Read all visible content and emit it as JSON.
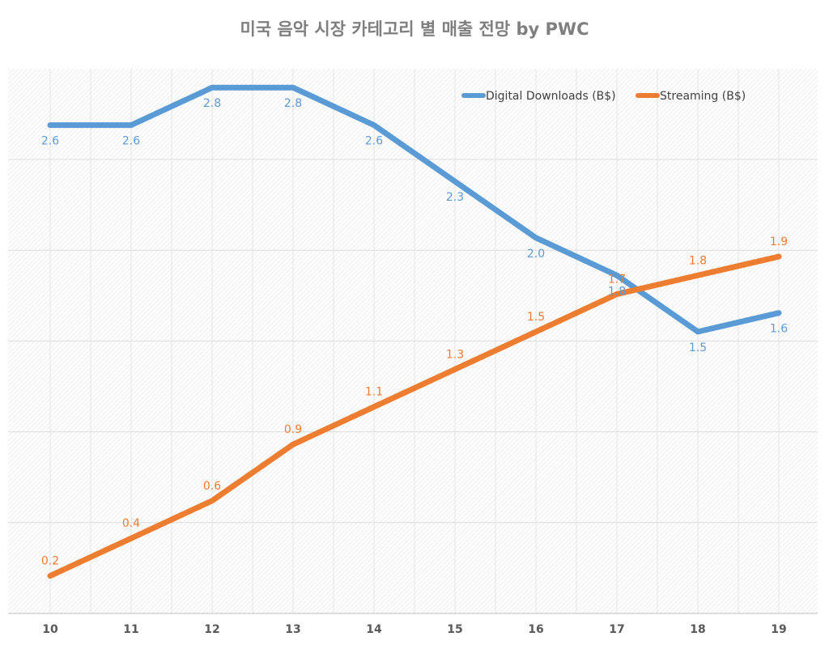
{
  "chart_data": {
    "type": "line",
    "title": "미국 음악 시장 카테고리 별 매출 전망 by PWC",
    "xlabel": "",
    "ylabel": "",
    "categories": [
      "10",
      "11",
      "12",
      "13",
      "14",
      "15",
      "16",
      "17",
      "18",
      "19"
    ],
    "ylim": [
      0,
      2.9
    ],
    "grid": true,
    "legend": "top-right",
    "series": [
      {
        "name": "Digital Downloads (B$)",
        "color": "#5b9bd5",
        "values": [
          2.6,
          2.6,
          2.8,
          2.8,
          2.6,
          2.3,
          2.0,
          1.8,
          1.5,
          1.6
        ]
      },
      {
        "name": "Streaming (B$)",
        "color": "#ed7d31",
        "values": [
          0.2,
          0.4,
          0.6,
          0.9,
          1.1,
          1.3,
          1.5,
          1.7,
          1.8,
          1.9
        ]
      }
    ]
  }
}
